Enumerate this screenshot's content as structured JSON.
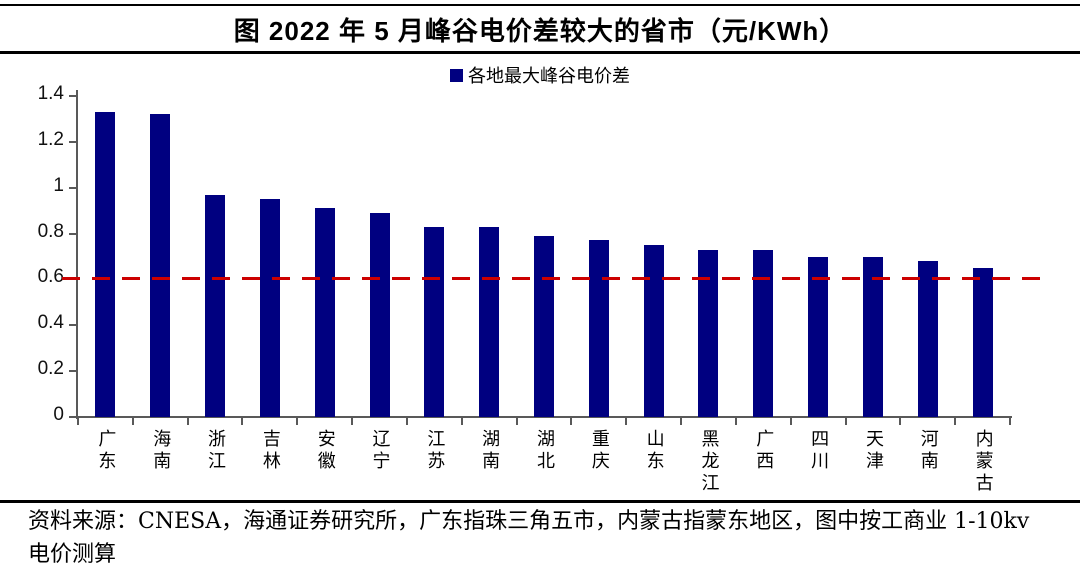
{
  "title": "图  2022 年 5 月峰谷电价差较大的省市（元/KWh）",
  "legend": {
    "label": "各地最大峰谷电价差",
    "swatch_color": "#000080"
  },
  "chart_data": {
    "type": "bar",
    "title": "图 2022 年 5 月峰谷电价差较大的省市（元/KWh）",
    "series_name": "各地最大峰谷电价差",
    "categories": [
      "广东",
      "海南",
      "浙江",
      "吉林",
      "安徽",
      "辽宁",
      "江苏",
      "湖南",
      "湖北",
      "重庆",
      "山东",
      "黑龙江",
      "广西",
      "四川",
      "天津",
      "河南",
      "内蒙古"
    ],
    "values": [
      1.33,
      1.32,
      0.97,
      0.95,
      0.91,
      0.89,
      0.83,
      0.83,
      0.79,
      0.77,
      0.75,
      0.73,
      0.73,
      0.7,
      0.7,
      0.68,
      0.65
    ],
    "xlabel": "",
    "ylabel": "",
    "ylim": [
      0,
      1.4
    ],
    "ytick_labels": [
      "0",
      "0.2",
      "0.4",
      "0.6",
      "0.8",
      "1",
      "1.2",
      "1.4"
    ],
    "grid": false,
    "legend_position": "top",
    "bar_color": "#000080",
    "axis_color": "#595959",
    "reference_line": {
      "value": 0.6,
      "color": "#cc0000",
      "style": "dashed"
    }
  },
  "source_note": "资料来源：CNESA，海通证券研究所，广东指珠三角五市，内蒙古指蒙东地区，图中按工商业 1-10kv 电价测算"
}
